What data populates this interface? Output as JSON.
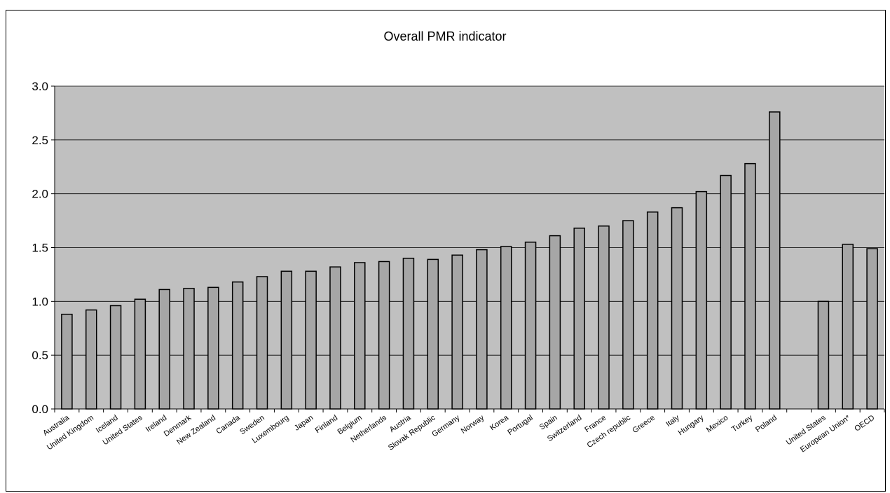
{
  "chart_data": {
    "type": "bar",
    "title": "Overall PMR indicator",
    "ylim": [
      0,
      3.0
    ],
    "yticks": [
      "0.0",
      "0.5",
      "1.0",
      "1.5",
      "2.0",
      "2.5",
      "3.0"
    ],
    "grid": true,
    "legend": "none",
    "colors": {
      "plot_bg": "#c0c0c0",
      "bar": "#a6a6a6",
      "bar_edge": "#000000"
    },
    "categories": [
      "Australia",
      "United Kingdom",
      "Iceland",
      "United States",
      "Ireland",
      "Denmark",
      "New Zealand",
      "Canada",
      "Sweden",
      "Luxembourg",
      "Japan",
      "Finland",
      "Belgium",
      "Netherlands",
      "Austria",
      "Slovak Republic",
      "Germany",
      "Norway",
      "Korea",
      "Portugal",
      "Spain",
      "Switzerland",
      "France",
      "Czech republic",
      "Greece",
      "Italy",
      "Hungary",
      "Mexico",
      "Turkey",
      "Poland",
      "",
      "United States",
      "European Union*",
      "OECD"
    ],
    "values": [
      0.88,
      0.92,
      0.96,
      1.02,
      1.11,
      1.12,
      1.13,
      1.18,
      1.23,
      1.28,
      1.28,
      1.32,
      1.36,
      1.37,
      1.4,
      1.39,
      1.43,
      1.48,
      1.51,
      1.55,
      1.61,
      1.68,
      1.7,
      1.75,
      1.83,
      1.87,
      2.02,
      2.17,
      2.28,
      2.76,
      null,
      1.0,
      1.53,
      1.49
    ]
  }
}
